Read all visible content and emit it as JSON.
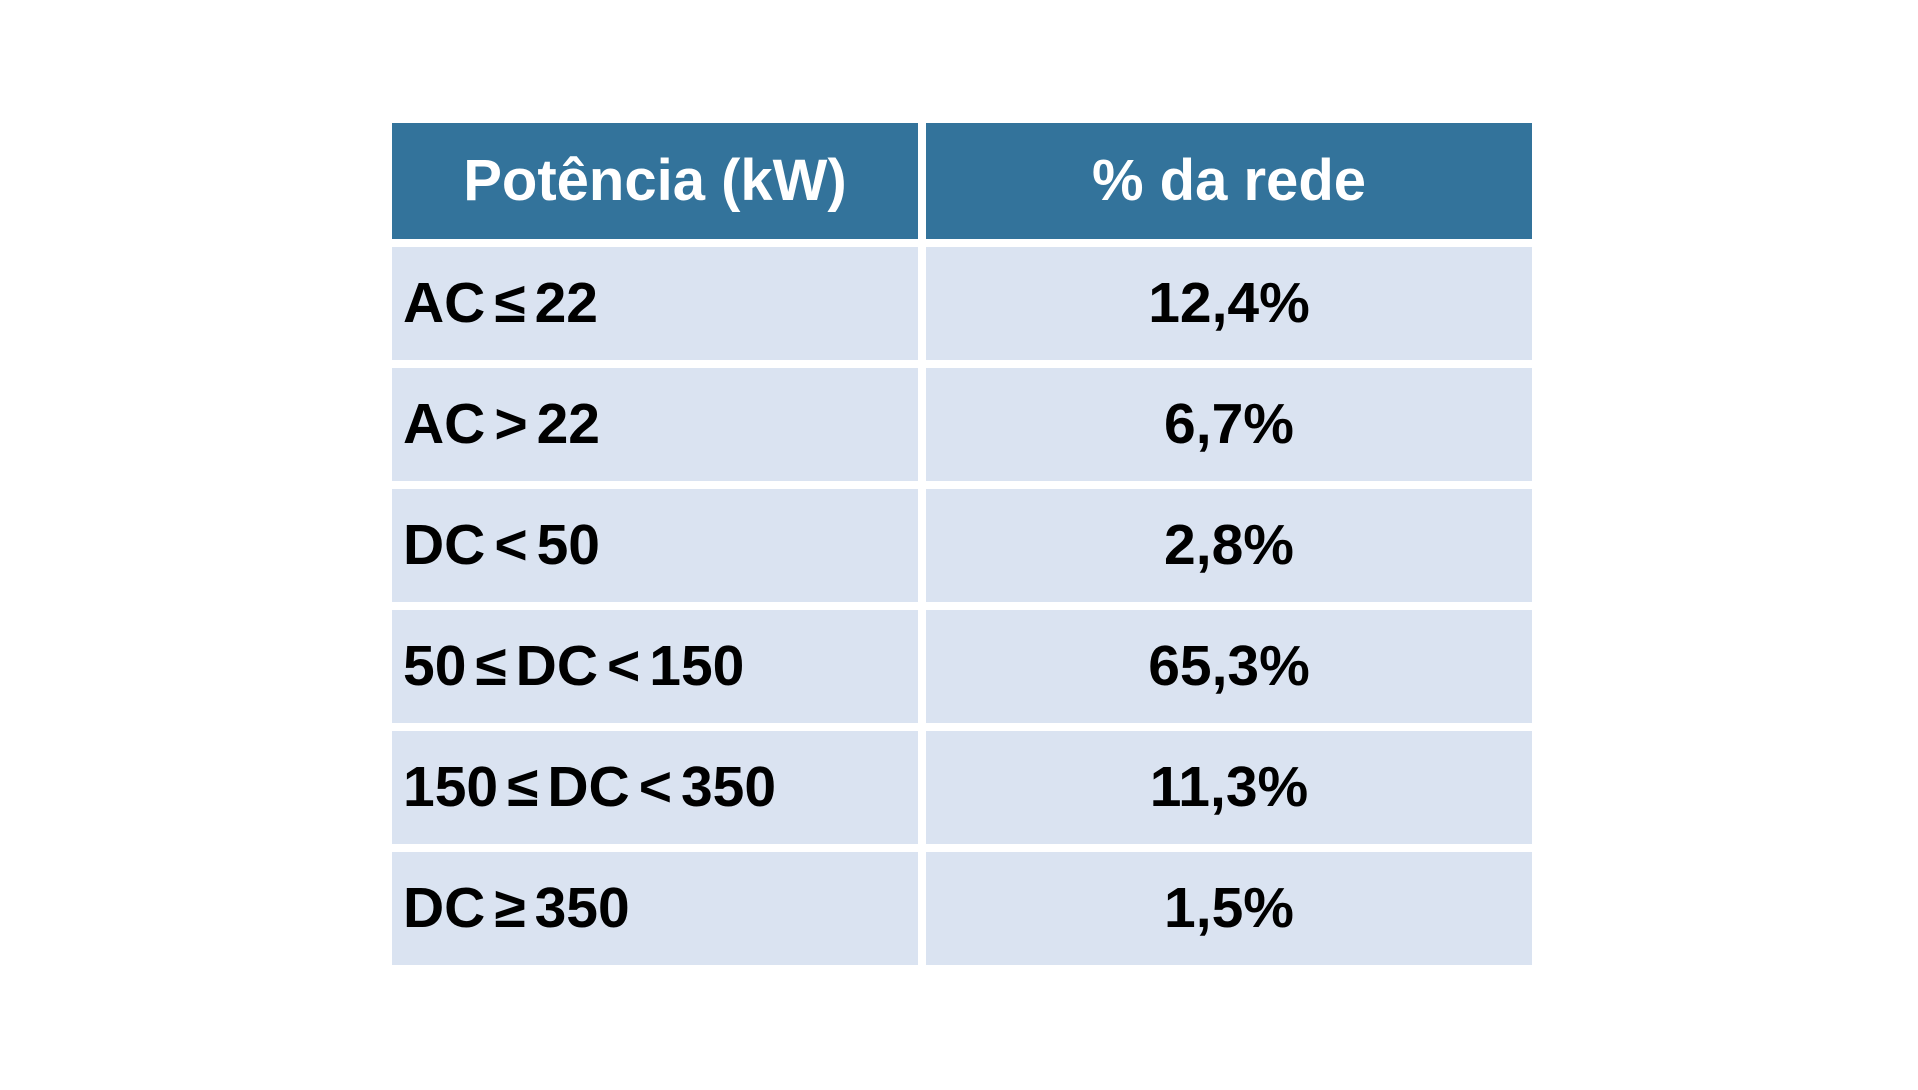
{
  "table": {
    "headers": {
      "power": "Potência (kW)",
      "share": "% da rede"
    },
    "rows": [
      {
        "power": "AC ≤ 22",
        "share": "12,4%"
      },
      {
        "power": "AC > 22",
        "share": "6,7%"
      },
      {
        "power": "DC < 50",
        "share": "2,8%"
      },
      {
        "power": "50 ≤ DC < 150",
        "share": "65,3%"
      },
      {
        "power": "150 ≤ DC < 350",
        "share": "11,3%"
      },
      {
        "power": "DC ≥ 350",
        "share": "1,5%"
      }
    ]
  },
  "colors": {
    "header_bg": "#33739B",
    "row_bg": "#DAE3F1",
    "header_text": "#FFFFFF",
    "body_text": "#000000",
    "page_bg": "#FFFFFF"
  },
  "chart_data": {
    "type": "table",
    "columns": [
      "Potência (kW)",
      "% da rede"
    ],
    "rows": [
      [
        "AC ≤ 22",
        "12,4%"
      ],
      [
        "AC > 22",
        "6,7%"
      ],
      [
        "DC < 50",
        "2,8%"
      ],
      [
        "50 ≤ DC < 150",
        "65,3%"
      ],
      [
        "150 ≤ DC < 350",
        "11,3%"
      ],
      [
        "DC ≥ 350",
        "1,5%"
      ]
    ],
    "values_numeric_percent": [
      12.4,
      6.7,
      2.8,
      65.3,
      11.3,
      1.5
    ],
    "layout": {
      "header_fill": "#33739B",
      "row_fill": "#DAE3F1",
      "gap_color": "#FFFFFF",
      "col1_align": "left",
      "col2_align": "center"
    }
  }
}
